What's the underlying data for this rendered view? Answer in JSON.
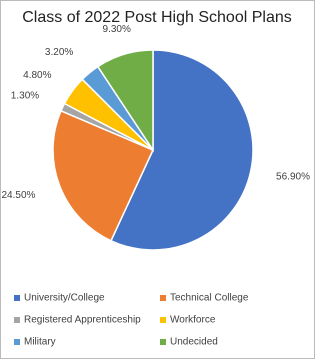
{
  "chart_data": {
    "type": "pie",
    "title": "Class of 2022 Post High School Plans",
    "categories": [
      "University/College",
      "Technical College",
      "Registered Apprenticeship",
      "Workforce",
      "Military",
      "Undecided"
    ],
    "values": [
      56.9,
      24.5,
      1.3,
      4.8,
      3.2,
      9.3
    ],
    "value_labels": [
      "56.90%",
      "24.50%",
      "1.30%",
      "4.80%",
      "3.20%",
      "9.30%"
    ],
    "colors": [
      "#4472c4",
      "#ed7d31",
      "#a5a5a5",
      "#ffc000",
      "#5b9bd5",
      "#70ad47"
    ],
    "legend": "bottom"
  }
}
